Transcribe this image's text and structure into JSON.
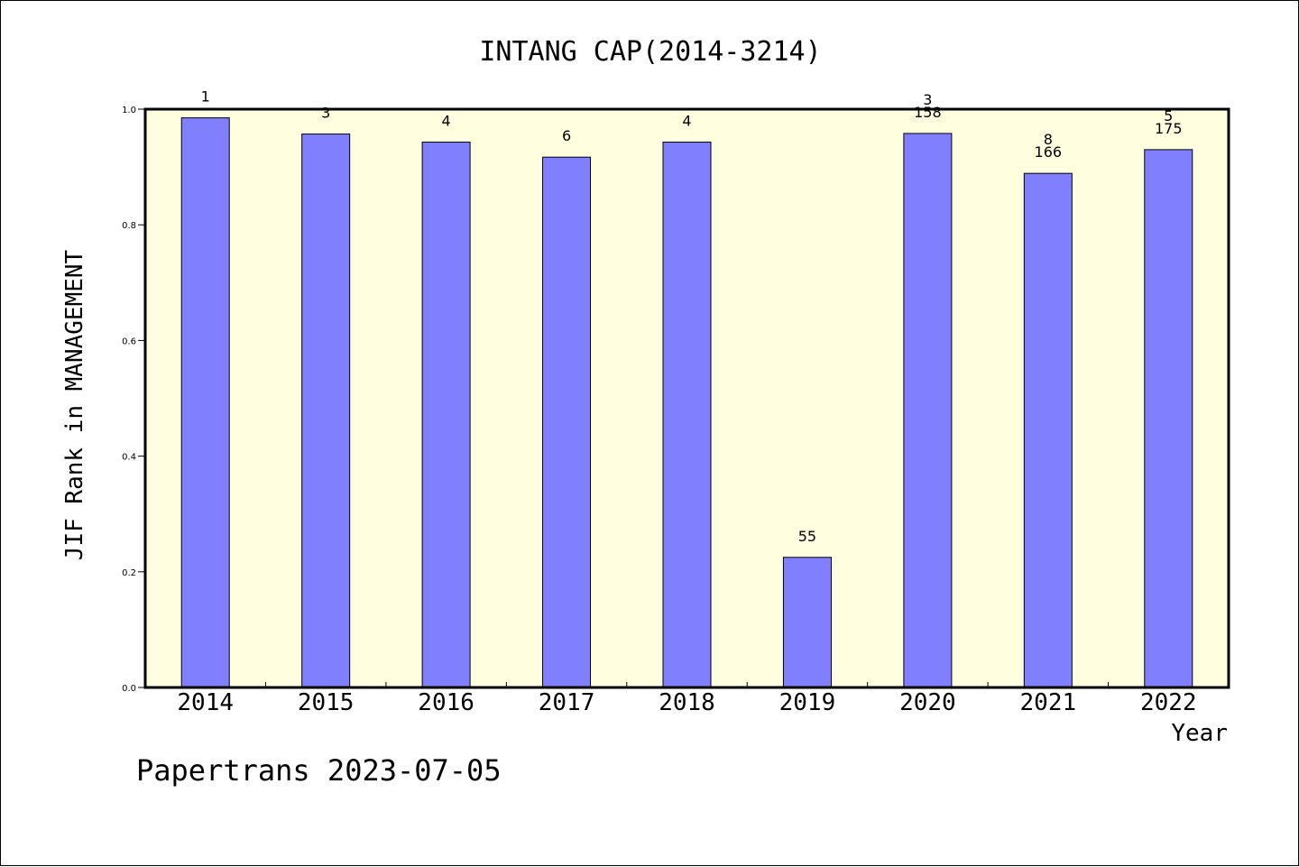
{
  "chart_data": {
    "type": "bar",
    "title": "INTANG CAP(2014-3214)",
    "xlabel": "Year",
    "ylabel": "JIF Rank in MANAGEMENT",
    "footer": "Papertrans 2023-07-05",
    "categories": [
      "2014",
      "2015",
      "2016",
      "2017",
      "2018",
      "2019",
      "2020",
      "2021",
      "2022"
    ],
    "values": [
      0.985,
      0.957,
      0.943,
      0.917,
      0.943,
      0.225,
      0.958,
      0.889,
      0.93
    ],
    "labels": [
      [
        "1"
      ],
      [
        "3"
      ],
      [
        "4"
      ],
      [
        "6"
      ],
      [
        "4"
      ],
      [
        "55"
      ],
      [
        "3",
        "158"
      ],
      [
        "8",
        "166"
      ],
      [
        "5",
        "175"
      ]
    ],
    "ylim": [
      0,
      1.0
    ],
    "yticks": [
      "0.0",
      "0.2",
      "0.4",
      "0.6",
      "0.8",
      "1.0"
    ],
    "grid": false,
    "colors": {
      "bar": "#8080ff",
      "plot_background": "#ffffe0",
      "axis": "#000000"
    }
  }
}
